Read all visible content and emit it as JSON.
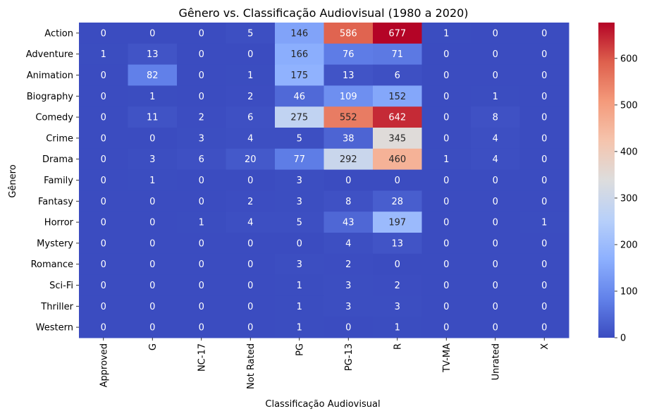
{
  "chart_data": {
    "type": "heatmap",
    "title": "Gênero vs. Classificação Audiovisual (1980 a 2020)",
    "xlabel": "Classificação Audiovisual",
    "ylabel": "Gênero",
    "x_categories": [
      "Approved",
      "G",
      "NC-17",
      "Not Rated",
      "PG",
      "PG-13",
      "R",
      "TV-MA",
      "Unrated",
      "X"
    ],
    "y_categories": [
      "Action",
      "Adventure",
      "Animation",
      "Biography",
      "Comedy",
      "Crime",
      "Drama",
      "Family",
      "Fantasy",
      "Horror",
      "Mystery",
      "Romance",
      "Sci-Fi",
      "Thriller",
      "Western"
    ],
    "values": [
      [
        0,
        0,
        0,
        5,
        146,
        586,
        677,
        1,
        0,
        0
      ],
      [
        1,
        13,
        0,
        0,
        166,
        76,
        71,
        0,
        0,
        0
      ],
      [
        0,
        82,
        0,
        1,
        175,
        13,
        6,
        0,
        0,
        0
      ],
      [
        0,
        1,
        0,
        2,
        46,
        109,
        152,
        0,
        1,
        0
      ],
      [
        0,
        11,
        2,
        6,
        275,
        552,
        642,
        0,
        8,
        0
      ],
      [
        0,
        0,
        3,
        4,
        5,
        38,
        345,
        0,
        4,
        0
      ],
      [
        0,
        3,
        6,
        20,
        77,
        292,
        460,
        1,
        4,
        0
      ],
      [
        0,
        1,
        0,
        0,
        3,
        0,
        0,
        0,
        0,
        0
      ],
      [
        0,
        0,
        0,
        2,
        3,
        8,
        28,
        0,
        0,
        0
      ],
      [
        0,
        0,
        1,
        4,
        5,
        43,
        197,
        0,
        0,
        1
      ],
      [
        0,
        0,
        0,
        0,
        0,
        4,
        13,
        0,
        0,
        0
      ],
      [
        0,
        0,
        0,
        0,
        3,
        2,
        0,
        0,
        0,
        0
      ],
      [
        0,
        0,
        0,
        0,
        1,
        3,
        2,
        0,
        0,
        0
      ],
      [
        0,
        0,
        0,
        0,
        1,
        3,
        3,
        0,
        0,
        0
      ],
      [
        0,
        0,
        0,
        0,
        1,
        0,
        1,
        0,
        0,
        0
      ]
    ],
    "colorscale": "coolwarm",
    "vmin": 0,
    "vmax": 677,
    "colorbar_ticks": [
      0,
      100,
      200,
      300,
      400,
      500,
      600
    ]
  }
}
